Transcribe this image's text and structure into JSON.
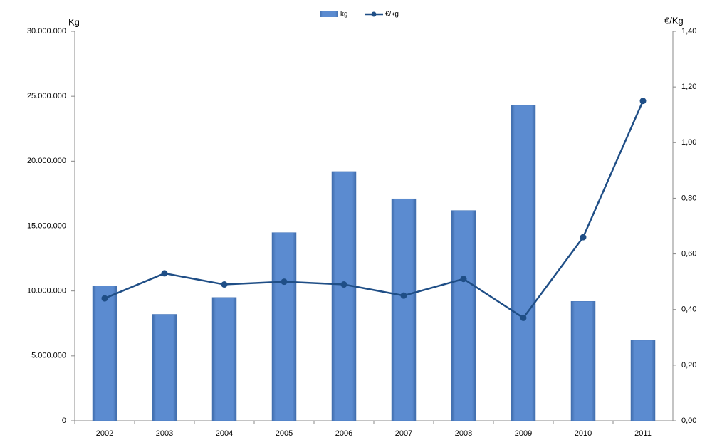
{
  "chart_data": {
    "type": "bar-line",
    "categories": [
      "2002",
      "2003",
      "2004",
      "2005",
      "2006",
      "2007",
      "2008",
      "2009",
      "2010",
      "2011"
    ],
    "y_label": "Kg",
    "y2_label": "€/Kg",
    "series": [
      {
        "name": "kg",
        "type": "bar",
        "color": "#5b8bd0",
        "values": [
          10400000,
          8200000,
          9500000,
          14500000,
          19200000,
          17100000,
          16200000,
          24300000,
          9200000,
          6200000
        ]
      },
      {
        "name": "€/kg",
        "type": "line",
        "axis": "y2",
        "color": "#1f4e86",
        "values": [
          0.44,
          0.53,
          0.49,
          0.5,
          0.49,
          0.45,
          0.51,
          0.37,
          0.66,
          1.15
        ]
      }
    ],
    "ylim": [
      0,
      30000000
    ],
    "yticks": [
      0,
      {
        "value": 5000000,
        "label": "5.000.000"
      },
      {
        "value": 10000000,
        "label": "10.000.000"
      },
      {
        "value": 15000000,
        "label": "15.000.000"
      },
      {
        "value": 20000000,
        "label": "20.000.000"
      },
      {
        "value": 25000000,
        "label": "25.000.000"
      },
      {
        "value": 30000000,
        "label": "30.000.000"
      }
    ],
    "y2lim": [
      0,
      1.4
    ],
    "y2ticks": [
      {
        "value": 0,
        "label": "0,00"
      },
      {
        "value": 0.2,
        "label": "0,20"
      },
      {
        "value": 0.4,
        "label": "0,40"
      },
      {
        "value": 0.6,
        "label": "0,60"
      },
      {
        "value": 0.8,
        "label": "0,80"
      },
      {
        "value": 1.0,
        "label": "1,00"
      },
      {
        "value": 1.2,
        "label": "1,20"
      },
      {
        "value": 1.4,
        "label": "1,40"
      }
    ],
    "grid": false,
    "legend": "top"
  }
}
